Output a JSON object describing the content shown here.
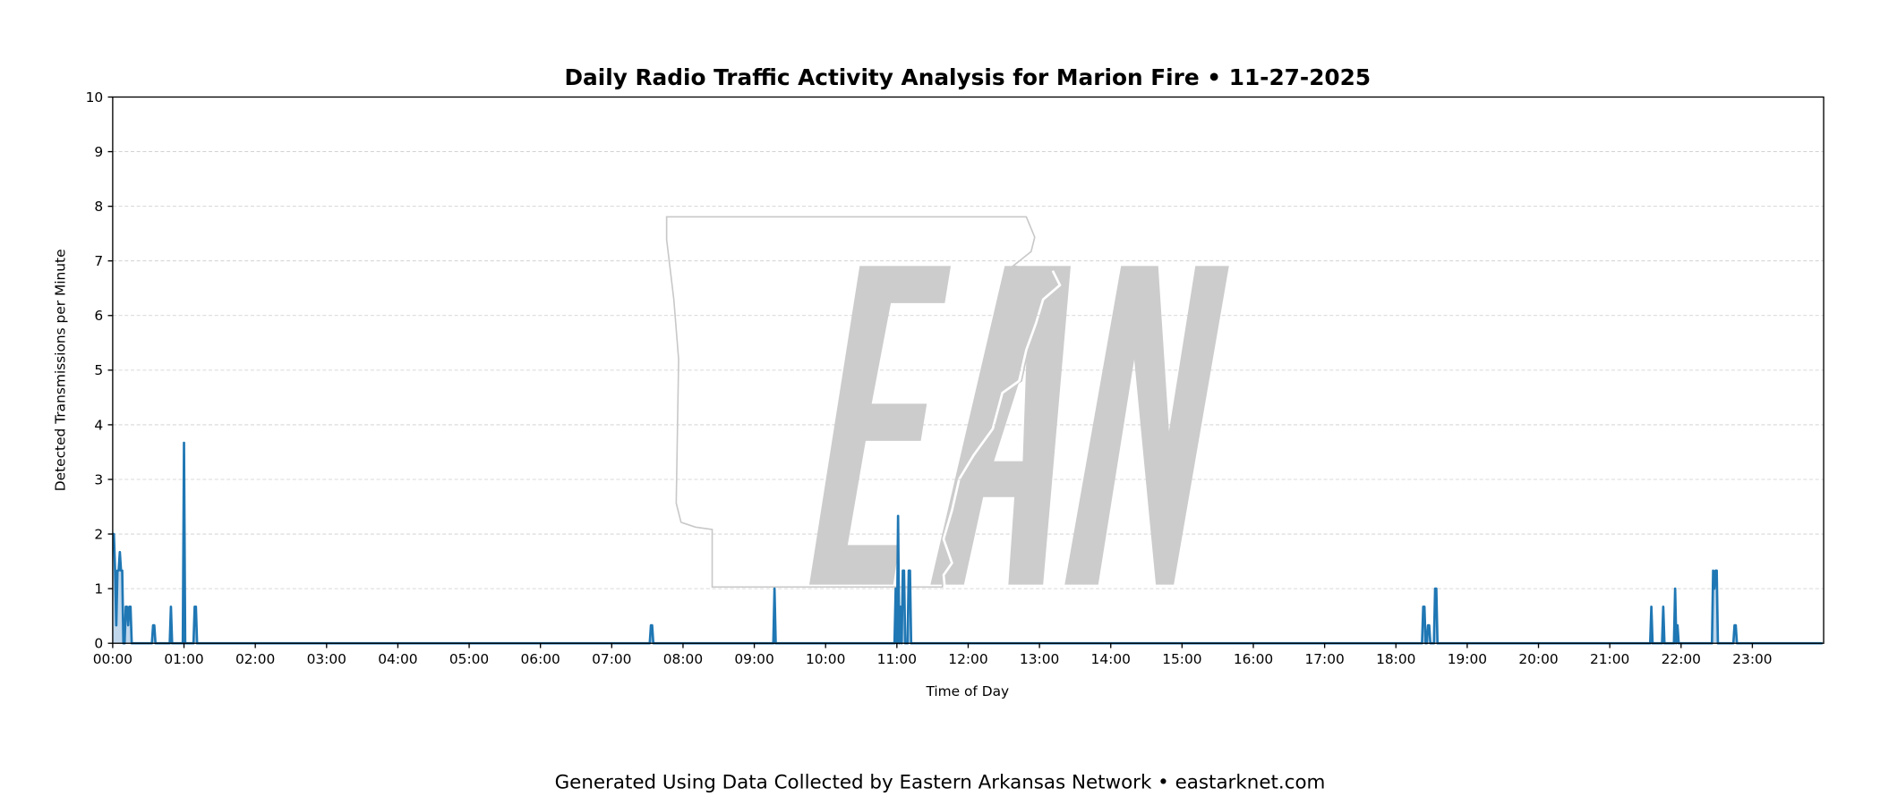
{
  "chart_data": {
    "type": "area",
    "title": "Daily Radio Traffic Activity Analysis for Marion Fire • 11-27-2025",
    "xlabel": "Time of Day",
    "ylabel": "Detected Transmissions per Minute",
    "xlim": [
      "00:00",
      "24:00"
    ],
    "ylim": [
      0,
      10
    ],
    "yticks": [
      "0",
      "1",
      "2",
      "3",
      "4",
      "5",
      "6",
      "7",
      "8",
      "9",
      "10"
    ],
    "xticks": [
      "00:00",
      "01:00",
      "02:00",
      "03:00",
      "04:00",
      "05:00",
      "06:00",
      "07:00",
      "08:00",
      "09:00",
      "10:00",
      "11:00",
      "12:00",
      "13:00",
      "14:00",
      "15:00",
      "16:00",
      "17:00",
      "18:00",
      "19:00",
      "20:00",
      "21:00",
      "22:00",
      "23:00"
    ],
    "grid": "horizontal-dashed",
    "line_color": "#1f77b4",
    "fill_color": "#b9d3ea",
    "point_unit": "minute of day",
    "points": [
      [
        0,
        2
      ],
      [
        1,
        2
      ],
      [
        2,
        1.33
      ],
      [
        3,
        0.33
      ],
      [
        4,
        1.33
      ],
      [
        5,
        1.33
      ],
      [
        6,
        1.67
      ],
      [
        7,
        1.33
      ],
      [
        8,
        1.33
      ],
      [
        10,
        0
      ],
      [
        11,
        0.67
      ],
      [
        12,
        0.67
      ],
      [
        13,
        0.33
      ],
      [
        14,
        0.67
      ],
      [
        15,
        0.67
      ],
      [
        17,
        0
      ],
      [
        34,
        0.33
      ],
      [
        35,
        0.33
      ],
      [
        49,
        0.67
      ],
      [
        60,
        3.67
      ],
      [
        69,
        0.67
      ],
      [
        70,
        0.67
      ],
      [
        453,
        0.33
      ],
      [
        454,
        0.33
      ],
      [
        557,
        1
      ],
      [
        659,
        1
      ],
      [
        661,
        2.33
      ],
      [
        663,
        0.67
      ],
      [
        665,
        1.33
      ],
      [
        666,
        1.33
      ],
      [
        667,
        0
      ],
      [
        670,
        1.33
      ],
      [
        671,
        1.33
      ],
      [
        1103,
        0.67
      ],
      [
        1104,
        0.67
      ],
      [
        1107,
        0.33
      ],
      [
        1108,
        0.33
      ],
      [
        1113,
        1
      ],
      [
        1114,
        1
      ],
      [
        1295,
        0.67
      ],
      [
        1305,
        0.67
      ],
      [
        1315,
        1
      ],
      [
        1317,
        0.33
      ],
      [
        1347,
        1.33
      ],
      [
        1348,
        1
      ],
      [
        1349,
        1.33
      ],
      [
        1350,
        1.33
      ],
      [
        1365,
        0.33
      ],
      [
        1366,
        0.33
      ]
    ]
  },
  "watermark": {
    "text": "EAN",
    "color": "#cccccc"
  },
  "footer": "Generated Using Data Collected by Eastern Arkansas Network • eastarknet.com"
}
